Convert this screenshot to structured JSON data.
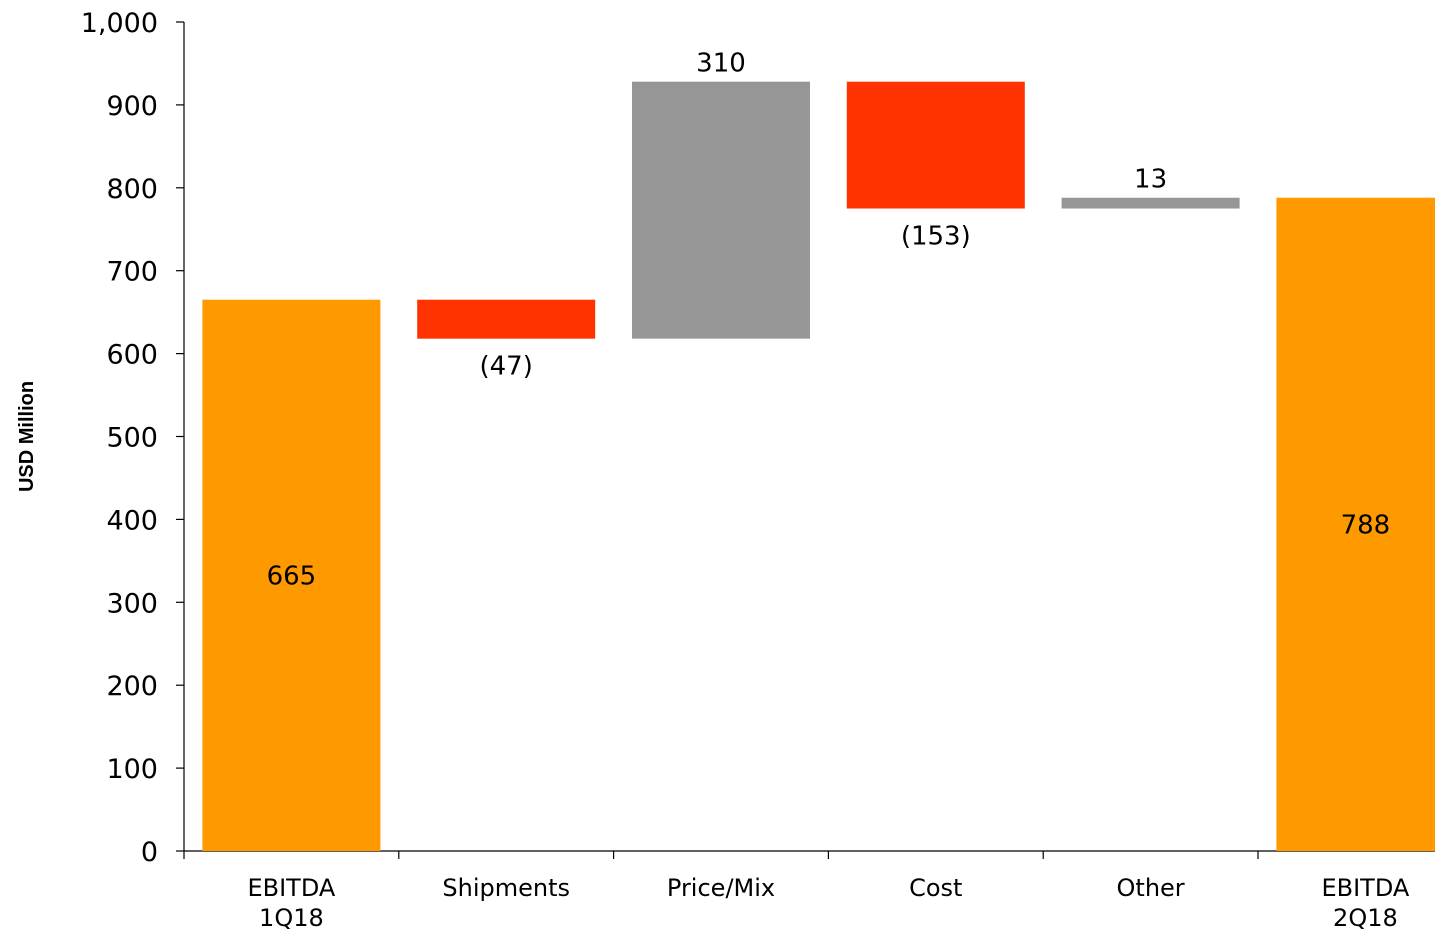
{
  "chart_data": {
    "type": "bar",
    "subtype": "waterfall",
    "title": "",
    "xlabel": "",
    "ylabel": "USD Million",
    "ylim": [
      0,
      1000
    ],
    "yticks": [
      0,
      100,
      200,
      300,
      400,
      500,
      600,
      700,
      800,
      900,
      1000
    ],
    "ytick_labels": [
      "0",
      "100",
      "200",
      "300",
      "400",
      "500",
      "600",
      "700",
      "800",
      "900",
      "1,000"
    ],
    "grid": false,
    "legend": "none",
    "categories": [
      [
        "EBITDA",
        "1Q18"
      ],
      [
        "Shipments"
      ],
      [
        "Price/Mix"
      ],
      [
        "Cost"
      ],
      [
        "Other"
      ],
      [
        "EBITDA",
        "2Q18"
      ]
    ],
    "bars": [
      {
        "kind": "total",
        "start": 0,
        "end": 665,
        "label": "665",
        "label_pos": "inside"
      },
      {
        "kind": "decrease",
        "start": 665,
        "end": 618,
        "label": "(47)",
        "label_pos": "below"
      },
      {
        "kind": "increase",
        "start": 618,
        "end": 928,
        "label": "310",
        "label_pos": "above"
      },
      {
        "kind": "decrease",
        "start": 928,
        "end": 775,
        "label": "(153)",
        "label_pos": "below"
      },
      {
        "kind": "increase",
        "start": 775,
        "end": 788,
        "label": "13",
        "label_pos": "above"
      },
      {
        "kind": "total",
        "start": 0,
        "end": 788,
        "label": "788",
        "label_pos": "inside"
      }
    ],
    "colors": {
      "total": "#FF9900",
      "increase": "#969696",
      "decrease": "#FF3300",
      "axis": "#000000"
    }
  }
}
